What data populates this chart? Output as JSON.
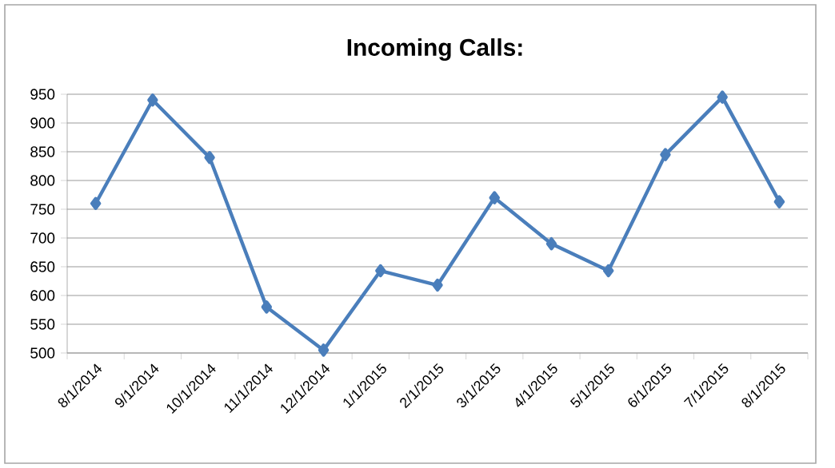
{
  "chart_data": {
    "type": "line",
    "title": "Incoming Calls:",
    "categories": [
      "8/1/2014",
      "9/1/2014",
      "10/1/2014",
      "11/1/2014",
      "12/1/2014",
      "1/1/2015",
      "2/1/2015",
      "3/1/2015",
      "4/1/2015",
      "5/1/2015",
      "6/1/2015",
      "7/1/2015",
      "8/1/2015"
    ],
    "series": [
      {
        "color": "#4a7ebb",
        "values": [
          760,
          940,
          840,
          580,
          505,
          643,
          618,
          770,
          690,
          643,
          845,
          945,
          763
        ]
      }
    ],
    "ylim": [
      500,
      950
    ],
    "yticks": [
      500,
      550,
      600,
      650,
      700,
      750,
      800,
      850,
      900,
      950
    ],
    "grid": "y",
    "marker": "diamond",
    "line_style": "solid"
  }
}
